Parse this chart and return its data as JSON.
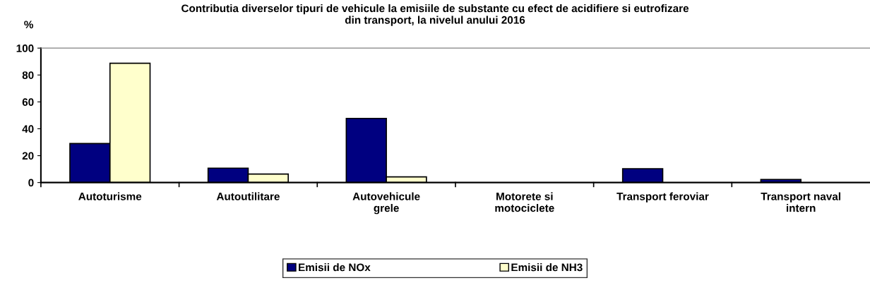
{
  "chart_data": {
    "type": "bar",
    "title": "Contributia diverselor tipuri de vehicule la emisiile de substante cu efect de acidifiere si eutrofizare\ndin transport, la nivelul anului 2016",
    "ylabel": "%",
    "categories": [
      "Autoturisme",
      "Autoutilitare",
      "Autovehicule\ngrele",
      "Motorete si\nmotociclete",
      "Transport feroviar",
      "Transport naval\nintern"
    ],
    "series": [
      {
        "name": "Emisii de NOx",
        "color": "#000080",
        "values": [
          29,
          10.7,
          47.7,
          0,
          10.3,
          2.3
        ]
      },
      {
        "name": "Emisii de NH3",
        "color": "#ffffcc",
        "values": [
          88.7,
          6.3,
          4.2,
          0,
          0,
          0
        ]
      }
    ],
    "ylim": [
      0,
      100
    ],
    "yticks": [
      0,
      20,
      40,
      60,
      80,
      100
    ],
    "grid": false,
    "legend": "bottom"
  }
}
